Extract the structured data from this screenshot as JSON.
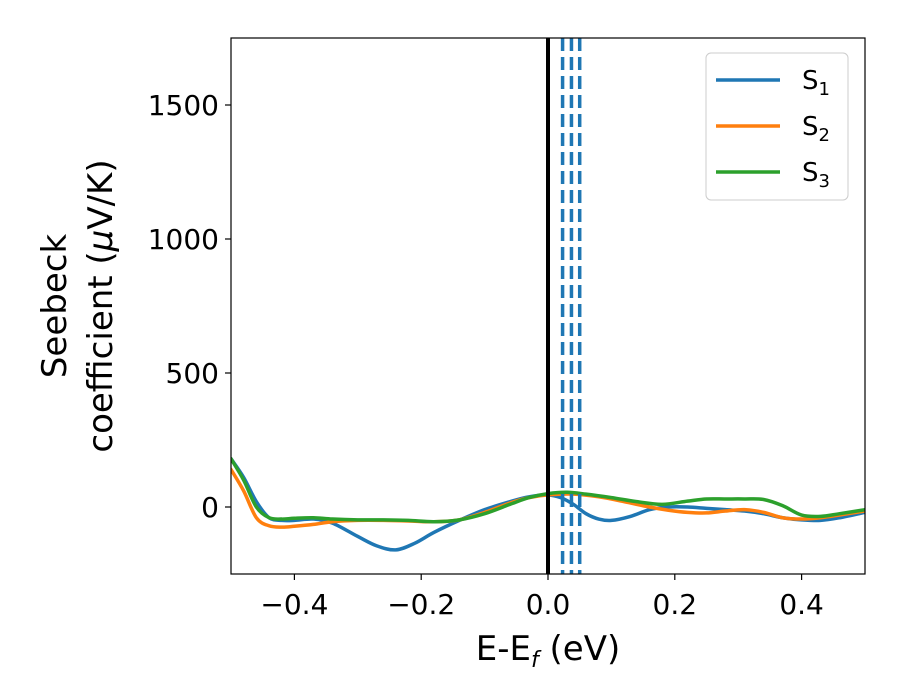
{
  "chart_data": {
    "type": "line",
    "xlabel": "E-E",
    "xlabel_sub": "f",
    "xlabel_unit": " (eV)",
    "ylabel_line1": "Seebeck",
    "ylabel_line2": "coefficient  (",
    "ylabel_mu": "μ",
    "ylabel_unit": "V/K)",
    "xlim": [
      -0.5,
      0.5
    ],
    "ylim": [
      -250,
      1750
    ],
    "xticks": [
      -0.4,
      -0.2,
      0.0,
      0.2,
      0.4
    ],
    "xtick_labels": [
      "−0.4",
      "−0.2",
      "0.0",
      "0.2",
      "0.4"
    ],
    "yticks": [
      0,
      500,
      1000,
      1500
    ],
    "ytick_labels": [
      "0",
      "500",
      "1000",
      "1500"
    ],
    "grid": false,
    "legend_position": "top-right",
    "vlines": [
      {
        "x": 0.0,
        "color": "#000000",
        "style": "solid"
      },
      {
        "x": 0.023,
        "color": "#1f77b4",
        "style": "dashed"
      },
      {
        "x": 0.037,
        "color": "#1f77b4",
        "style": "dashed"
      },
      {
        "x": 0.05,
        "color": "#1f77b4",
        "style": "dashed"
      }
    ],
    "series": [
      {
        "name": "S",
        "sub": "1",
        "color": "#1f77b4",
        "x": [
          -0.5,
          -0.48,
          -0.46,
          -0.44,
          -0.42,
          -0.4,
          -0.37,
          -0.34,
          -0.3,
          -0.27,
          -0.24,
          -0.21,
          -0.18,
          -0.14,
          -0.1,
          -0.06,
          -0.03,
          0.0,
          0.02,
          0.04,
          0.06,
          0.08,
          0.1,
          0.13,
          0.16,
          0.19,
          0.22,
          0.25,
          0.28,
          0.31,
          0.34,
          0.37,
          0.4,
          0.43,
          0.46,
          0.5
        ],
        "y": [
          180,
          110,
          20,
          -40,
          -50,
          -50,
          -45,
          -60,
          -110,
          -145,
          -160,
          -135,
          -95,
          -50,
          -10,
          20,
          38,
          45,
          35,
          10,
          -25,
          -45,
          -50,
          -35,
          -10,
          0,
          0,
          -5,
          -10,
          -15,
          -25,
          -40,
          -48,
          -50,
          -40,
          -20
        ]
      },
      {
        "name": "S",
        "sub": "2",
        "color": "#ff7f0e",
        "x": [
          -0.5,
          -0.48,
          -0.46,
          -0.44,
          -0.42,
          -0.4,
          -0.37,
          -0.34,
          -0.3,
          -0.26,
          -0.22,
          -0.18,
          -0.14,
          -0.1,
          -0.06,
          -0.03,
          0.0,
          0.04,
          0.08,
          0.12,
          0.16,
          0.19,
          0.22,
          0.25,
          0.28,
          0.31,
          0.34,
          0.37,
          0.4,
          0.43,
          0.46,
          0.5
        ],
        "y": [
          140,
          60,
          -40,
          -70,
          -75,
          -72,
          -65,
          -55,
          -50,
          -50,
          -52,
          -55,
          -48,
          -20,
          15,
          35,
          45,
          48,
          38,
          20,
          0,
          -12,
          -20,
          -22,
          -15,
          -10,
          -20,
          -40,
          -45,
          -40,
          -30,
          -15
        ]
      },
      {
        "name": "S",
        "sub": "3",
        "color": "#2ca02c",
        "x": [
          -0.5,
          -0.48,
          -0.46,
          -0.44,
          -0.42,
          -0.4,
          -0.37,
          -0.34,
          -0.3,
          -0.26,
          -0.22,
          -0.18,
          -0.14,
          -0.1,
          -0.06,
          -0.03,
          0.0,
          0.03,
          0.06,
          0.1,
          0.14,
          0.18,
          0.22,
          0.25,
          0.28,
          0.31,
          0.34,
          0.37,
          0.4,
          0.43,
          0.46,
          0.5
        ],
        "y": [
          180,
          100,
          0,
          -40,
          -45,
          -42,
          -40,
          -45,
          -48,
          -48,
          -50,
          -55,
          -48,
          -25,
          10,
          35,
          50,
          55,
          48,
          35,
          20,
          10,
          22,
          30,
          30,
          30,
          28,
          5,
          -30,
          -35,
          -25,
          -10
        ]
      }
    ]
  }
}
